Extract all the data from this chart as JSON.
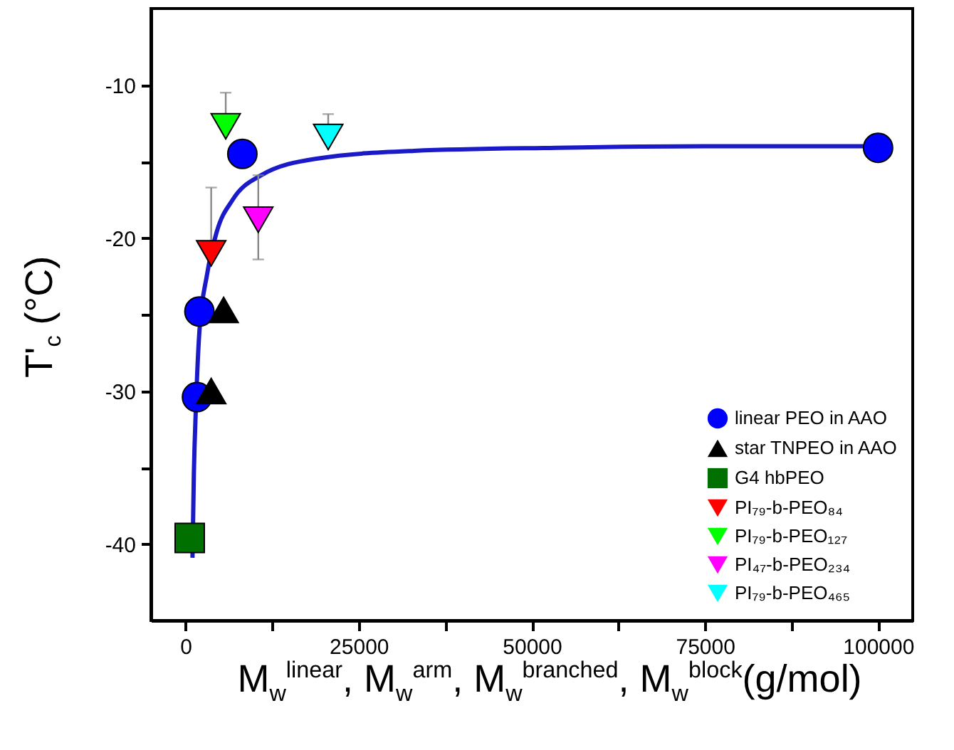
{
  "chart_data": {
    "type": "scatter",
    "xlabel": "M$_{w}$$^{linear}$, M$_{w}$$^{arm}$, M$_{w}$$^{branched}$, M$_{w}$$^{block}$(g/mol)",
    "ylabel": "T'$_{c}$ (°C)",
    "xlim": [
      -5000,
      105000
    ],
    "ylim": [
      -45,
      -5
    ],
    "xticks": [
      0,
      {
        "value": 12500,
        "label": null
      },
      25000,
      {
        "value": 37500,
        "label": null
      },
      50000,
      {
        "value": 62500,
        "label": null
      },
      75000,
      {
        "value": 87500,
        "label": null
      },
      100000
    ],
    "yticks": [
      {
        "value": -35,
        "label": null
      },
      -40,
      -30,
      {
        "value": -25,
        "label": null
      },
      -20,
      {
        "value": -15,
        "label": null
      },
      -10
    ],
    "legend": "bottom right",
    "grid": false,
    "series": [
      {
        "type": "line",
        "color": "#1a1ac8",
        "x": [
          1000,
          1200,
          1500,
          2000,
          3100,
          4500,
          6800,
          10900,
          19100,
          33000,
          53500,
          75000,
          100000
        ],
        "values": [
          -40.9,
          -35.4,
          -31,
          -26.1,
          -22.4,
          -19.6,
          -17.5,
          -15.9,
          -14.8,
          -14.3,
          -14.1,
          -14.0,
          -14
        ]
      },
      {
        "name": "linear PEO in AAO",
        "color": "#0000ff",
        "marker": "circle",
        "x": [
          1650,
          2000,
          8200,
          100000
        ],
        "values": [
          -30.4,
          -24.8,
          -14.5,
          -14.1
        ]
      },
      {
        "name": "star TNPEO in AAO",
        "color": "#000000",
        "marker": "triangle",
        "x": [
          3700,
          5500
        ],
        "values": [
          -30.0,
          -24.7
        ]
      },
      {
        "name": "G4 hbPEO",
        "color": "#007000",
        "marker": "square",
        "x": [
          600
        ],
        "values": [
          -39.6
        ]
      },
      {
        "name": "PI₇₉-b-PEO₈₄",
        "color": "#ff0000",
        "marker": "triangle-down",
        "x": [
          3700
        ],
        "values": [
          -21.0
        ],
        "errors": [
          [
            -21.0,
            -16.7
          ]
        ]
      },
      {
        "name": "PI₇₉-b-PEO₁₂₇",
        "color": "#00ff00",
        "marker": "triangle-down",
        "x": [
          5800
        ],
        "values": [
          -12.7
        ],
        "errors": [
          [
            -12.7,
            -10.5
          ]
        ]
      },
      {
        "name": "PI₄₇-b-PEO₂₃₄",
        "color": "#ff00ff",
        "marker": "triangle-down",
        "x": [
          10500
        ],
        "values": [
          -18.8
        ],
        "errors": [
          [
            -21.4,
            -15.9
          ]
        ]
      },
      {
        "name": "PI₇₉-b-PEO₄₆₅",
        "color": "#00ffff",
        "marker": "triangle-down",
        "x": [
          20600
        ],
        "values": [
          -13.4
        ],
        "errors": [
          [
            -13.4,
            -11.9
          ]
        ]
      }
    ]
  }
}
